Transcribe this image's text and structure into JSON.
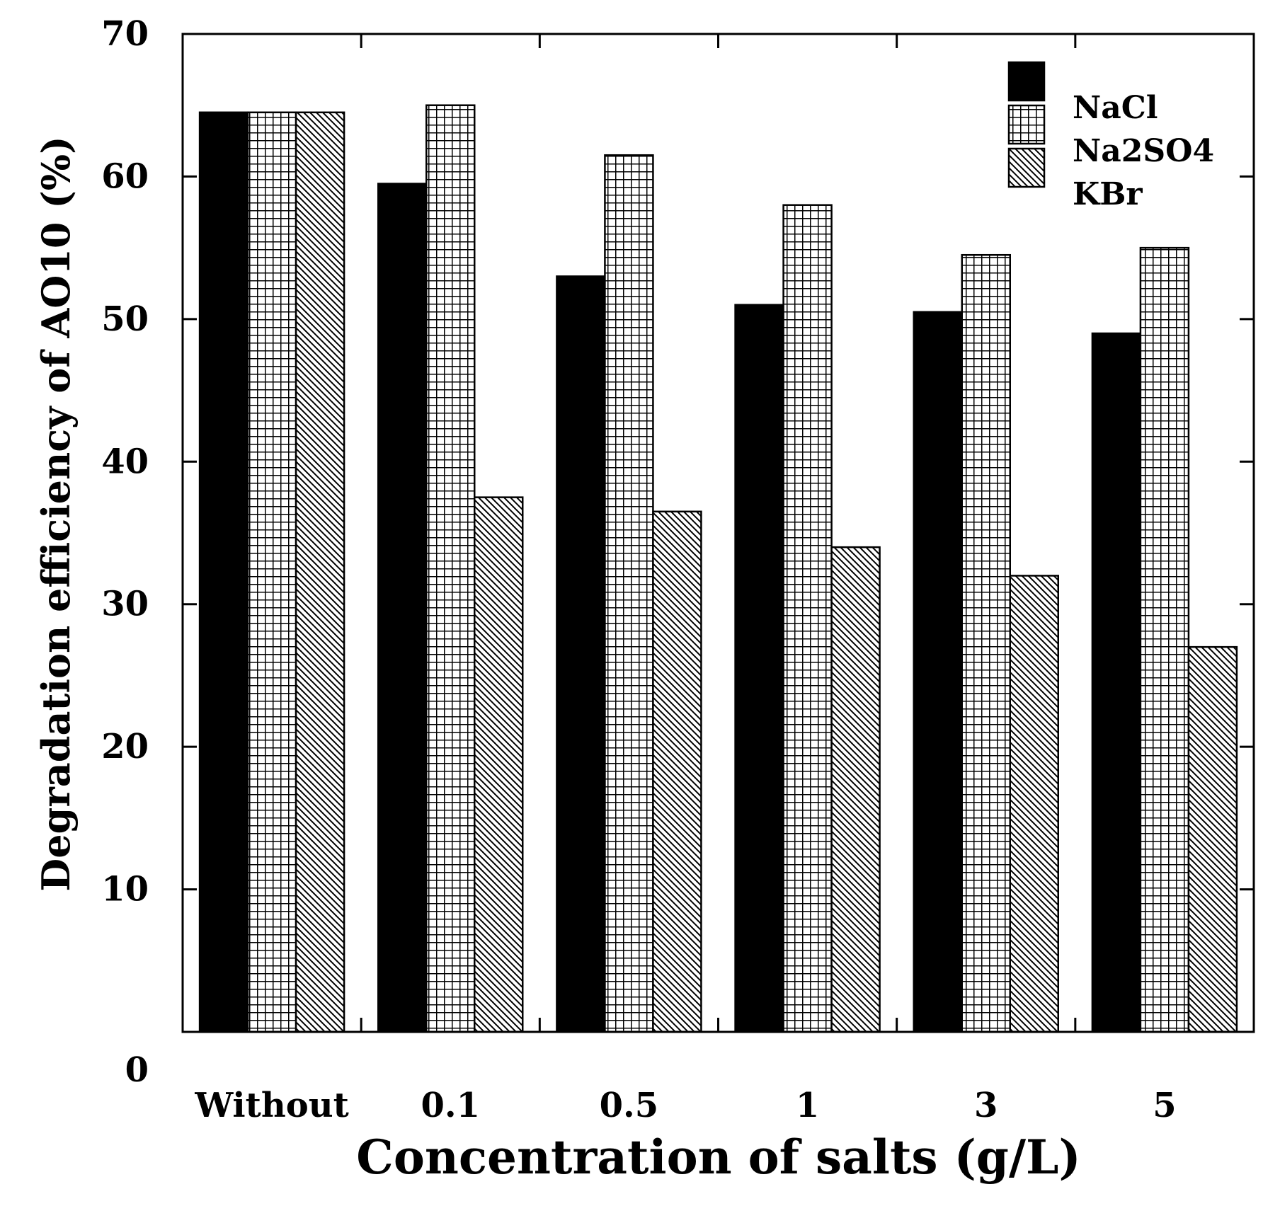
{
  "chart_data": {
    "type": "bar",
    "title": "",
    "xlabel": "Concentration of salts (g/L)",
    "ylabel": "Degradation efficiency of AO10 (%)",
    "ylim": [
      0,
      70
    ],
    "yticks": [
      "0",
      "10",
      "20",
      "30",
      "40",
      "50",
      "60",
      "70"
    ],
    "categories": [
      "Without",
      "0.1",
      "0.5",
      "1",
      "3",
      "5"
    ],
    "series": [
      {
        "name": "NaCl",
        "pattern": "solid",
        "values": [
          64.5,
          59.5,
          53,
          51,
          50.5,
          49
        ]
      },
      {
        "name": "Na2SO4",
        "pattern": "grid",
        "values": [
          64.5,
          65,
          61.5,
          58,
          54.5,
          55
        ]
      },
      {
        "name": "KBr",
        "pattern": "diagonal-hatch",
        "values": [
          64.5,
          37.5,
          36.5,
          34,
          32,
          27
        ]
      }
    ],
    "legend_position": "top-right",
    "grid": false
  },
  "colors": {
    "bar_fill": "#000000",
    "background": "#ffffff",
    "stroke": "#000000"
  }
}
